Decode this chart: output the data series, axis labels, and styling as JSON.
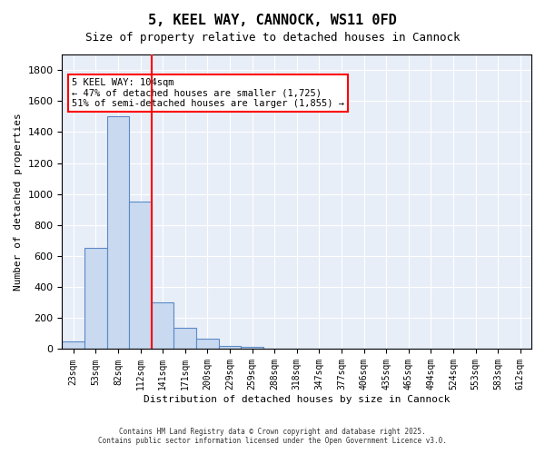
{
  "title1": "5, KEEL WAY, CANNOCK, WS11 0FD",
  "title2": "Size of property relative to detached houses in Cannock",
  "xlabel": "Distribution of detached houses by size in Cannock",
  "ylabel": "Number of detached properties",
  "categories": [
    "23sqm",
    "53sqm",
    "82sqm",
    "112sqm",
    "141sqm",
    "171sqm",
    "200sqm",
    "229sqm",
    "259sqm",
    "288sqm",
    "318sqm",
    "347sqm",
    "377sqm",
    "406sqm",
    "435sqm",
    "465sqm",
    "494sqm",
    "524sqm",
    "553sqm",
    "583sqm",
    "612sqm"
  ],
  "values": [
    50,
    650,
    1500,
    950,
    300,
    135,
    65,
    20,
    15,
    5,
    3,
    2,
    2,
    2,
    1,
    1,
    1,
    1,
    0,
    0,
    0
  ],
  "bar_color": "#c9d9f0",
  "bar_edge_color": "#5a8ac6",
  "vline_x": 3.5,
  "vline_color": "red",
  "annotation_text": "5 KEEL WAY: 104sqm\n← 47% of detached houses are smaller (1,725)\n51% of semi-detached houses are larger (1,855) →",
  "annotation_box_color": "white",
  "annotation_box_edge": "red",
  "ylim": [
    0,
    1900
  ],
  "yticks": [
    0,
    200,
    400,
    600,
    800,
    1000,
    1200,
    1400,
    1600,
    1800
  ],
  "background_color": "#e8eef8",
  "grid_color": "white",
  "footer1": "Contains HM Land Registry data © Crown copyright and database right 2025.",
  "footer2": "Contains public sector information licensed under the Open Government Licence v3.0."
}
